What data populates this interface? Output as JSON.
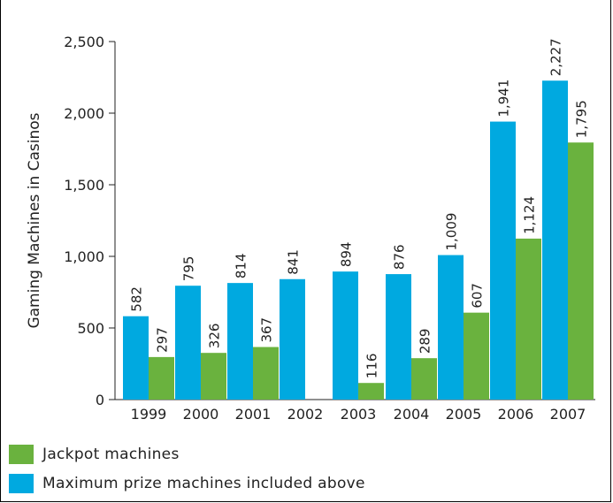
{
  "chart_data": {
    "type": "bar",
    "title": "",
    "xlabel": "",
    "ylabel": "Gaming Machines in Casinos",
    "ylim": [
      0,
      2500
    ],
    "yticks": [
      0,
      500,
      1000,
      1500,
      2000,
      2500
    ],
    "ytick_labels": [
      "0",
      "500",
      "1,000",
      "1,500",
      "2,000",
      "2,500"
    ],
    "grid": false,
    "legend_position": "bottom-left",
    "categories": [
      "1999",
      "2000",
      "2001",
      "2002",
      "2003",
      "2004",
      "2005",
      "2006",
      "2007"
    ],
    "series": [
      {
        "name": "Maximum prize machines included above",
        "color": "#00a9e0",
        "values": [
          582,
          795,
          814,
          841,
          894,
          876,
          1009,
          1941,
          2227
        ],
        "labels": [
          "582",
          "795",
          "814",
          "841",
          "894",
          "876",
          "1,009",
          "1,941",
          "2,227"
        ]
      },
      {
        "name": "Jackpot machines",
        "color": "#6ab23e",
        "values": [
          297,
          326,
          367,
          null,
          116,
          289,
          607,
          1124,
          1795
        ],
        "labels": [
          "297",
          "326",
          "367",
          "",
          "116",
          "289",
          "607",
          "1,124",
          "1,795"
        ]
      }
    ]
  },
  "legend": {
    "items": [
      {
        "label": "Jackpot machines",
        "color": "#6ab23e"
      },
      {
        "label": "Maximum prize machines included above",
        "color": "#00a9e0"
      }
    ]
  }
}
